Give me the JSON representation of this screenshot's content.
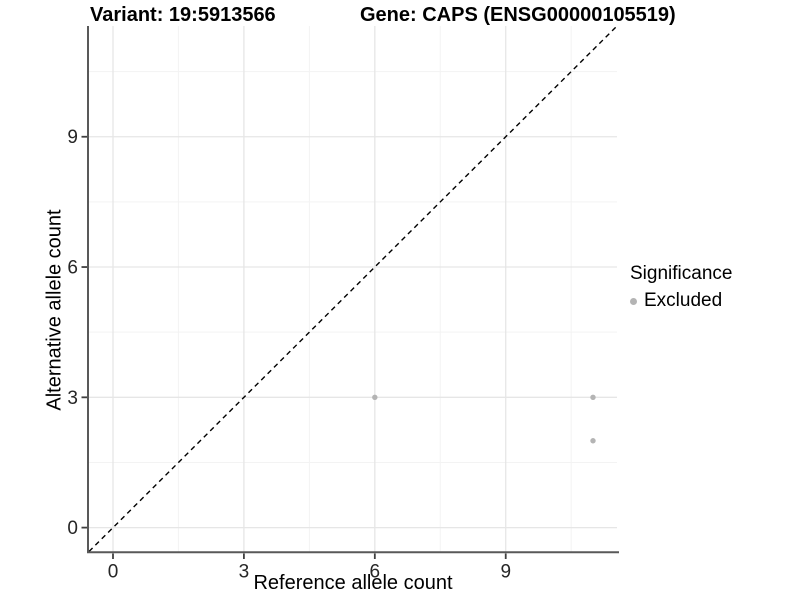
{
  "titles": {
    "left": "Variant: 19:5913566",
    "right": "Gene: CAPS (ENSG00000105519)"
  },
  "axes": {
    "x_label": "Reference allele count",
    "y_label": "Alternative allele count"
  },
  "legend": {
    "title": "Significance",
    "items": [
      {
        "label": "Excluded",
        "color": "#b4b4b4"
      }
    ]
  },
  "colors": {
    "point": "#b4b4b4",
    "axis_line": "#595959",
    "tick_mark": "#404040",
    "tick_label": "#262626",
    "grid_major": "#e6e6e6",
    "grid_minor": "#f3f3f3",
    "identity_line": "#000000"
  },
  "chart_data": {
    "type": "scatter",
    "title": "Variant: 19:5913566   Gene: CAPS (ENSG00000105519)",
    "xlabel": "Reference allele count",
    "ylabel": "Alternative allele count",
    "xlim": [
      -0.55,
      11.55
    ],
    "ylim": [
      -0.55,
      11.55
    ],
    "x_major_ticks": [
      0,
      3,
      6,
      9
    ],
    "y_major_ticks": [
      0,
      3,
      6,
      9
    ],
    "x_minor_ticks": [
      1.5,
      4.5,
      7.5,
      10.5
    ],
    "y_minor_ticks": [
      1.5,
      4.5,
      7.5,
      10.5
    ],
    "grid": true,
    "legend_position": "right",
    "series": [
      {
        "name": "Excluded",
        "color": "#b4b4b4",
        "points": [
          {
            "x": 6,
            "y": 3
          },
          {
            "x": 11,
            "y": 3
          },
          {
            "x": 11,
            "y": 2
          }
        ]
      }
    ],
    "identity_line": {
      "type": "dashed",
      "equation": "y = x",
      "from": [
        -0.55,
        -0.55
      ],
      "to": [
        11.55,
        11.55
      ]
    }
  }
}
